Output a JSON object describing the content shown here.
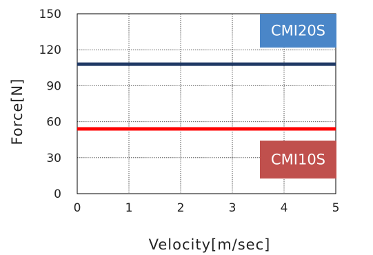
{
  "chart_data": {
    "type": "line",
    "xlabel": "Velocity[m/sec]",
    "ylabel": "Force[N]",
    "xlim": [
      0,
      5
    ],
    "ylim": [
      0,
      150
    ],
    "xticks": [
      "0",
      "1",
      "2",
      "3",
      "4",
      "5"
    ],
    "yticks": [
      "0",
      "30",
      "60",
      "90",
      "120",
      "150"
    ],
    "grid": true,
    "series": [
      {
        "name": "CMI20S",
        "x": [
          0,
          5
        ],
        "y": [
          108,
          108
        ],
        "color": "#1f3864"
      },
      {
        "name": "CMI10S",
        "x": [
          0,
          5
        ],
        "y": [
          54,
          54
        ],
        "color": "#ff0000"
      }
    ],
    "labels": [
      {
        "text": "CMI20S",
        "background": "#4a86c8"
      },
      {
        "text": "CMI10S",
        "background": "#c0504d"
      }
    ]
  }
}
